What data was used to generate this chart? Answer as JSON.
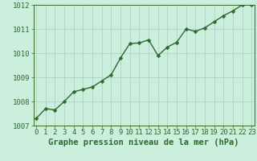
{
  "x": [
    0,
    1,
    2,
    3,
    4,
    5,
    6,
    7,
    8,
    9,
    10,
    11,
    12,
    13,
    14,
    15,
    16,
    17,
    18,
    19,
    20,
    21,
    22,
    23
  ],
  "y": [
    1007.3,
    1007.7,
    1007.65,
    1008.0,
    1008.4,
    1008.5,
    1008.6,
    1008.85,
    1009.1,
    1009.8,
    1010.4,
    1010.42,
    1010.55,
    1009.9,
    1010.25,
    1010.45,
    1011.0,
    1010.9,
    1011.05,
    1011.3,
    1011.55,
    1011.75,
    1012.0,
    1012.0
  ],
  "ylim": [
    1007,
    1012
  ],
  "xlim": [
    -0.3,
    23.3
  ],
  "yticks": [
    1007,
    1008,
    1009,
    1010,
    1011,
    1012
  ],
  "xticks": [
    0,
    1,
    2,
    3,
    4,
    5,
    6,
    7,
    8,
    9,
    10,
    11,
    12,
    13,
    14,
    15,
    16,
    17,
    18,
    19,
    20,
    21,
    22,
    23
  ],
  "line_color": "#2d6a2d",
  "marker_color": "#2d6a2d",
  "bg_color": "#cceedd",
  "grid_color": "#aacccc",
  "xlabel": "Graphe pression niveau de la mer (hPa)",
  "xlabel_fontsize": 7.5,
  "tick_fontsize": 6.5,
  "line_width": 1.0,
  "marker_size": 2.5
}
